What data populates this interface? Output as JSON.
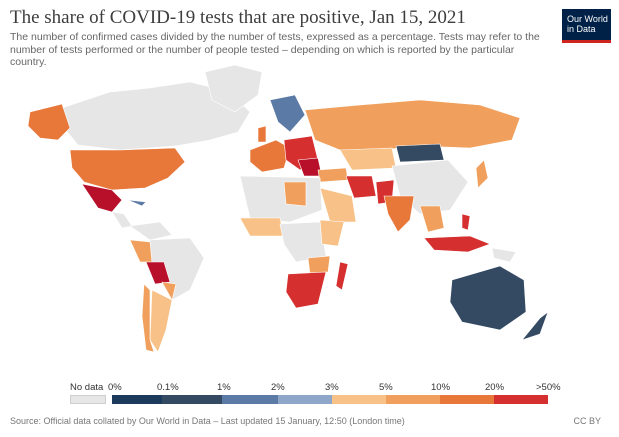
{
  "header": {
    "title": "The share of COVID-19 tests that are positive, Jan 15, 2021",
    "subtitle": "The number of confirmed cases divided by the number of tests, expressed as a percentage. Tests may refer to the number of tests performed or the number of people tested – depending on which is reported by the particular country.",
    "logo_line1": "Our World",
    "logo_line2": "in Data"
  },
  "legend": {
    "no_data_label": "No data",
    "bins": [
      {
        "label": "0%",
        "color": "#1b3a5c"
      },
      {
        "label": "0.1%",
        "color": "#344a63"
      },
      {
        "label": "1%",
        "color": "#5b7aa6"
      },
      {
        "label": "2%",
        "color": "#8ea6c8"
      },
      {
        "label": "3%",
        "color": "#f8c187"
      },
      {
        "label": "5%",
        "color": "#f0a05c"
      },
      {
        "label": "10%",
        "color": "#e8773a"
      },
      {
        "label": "20%",
        "color": "#d62f2f"
      },
      {
        "label": ">50%",
        "color": "#b8102a"
      }
    ],
    "no_data_color": "#e6e6e6"
  },
  "footer": {
    "source": "Source: Official data collated by Our World in Data – Last updated 15 January, 12:50 (London time)",
    "license": "CC BY"
  }
}
